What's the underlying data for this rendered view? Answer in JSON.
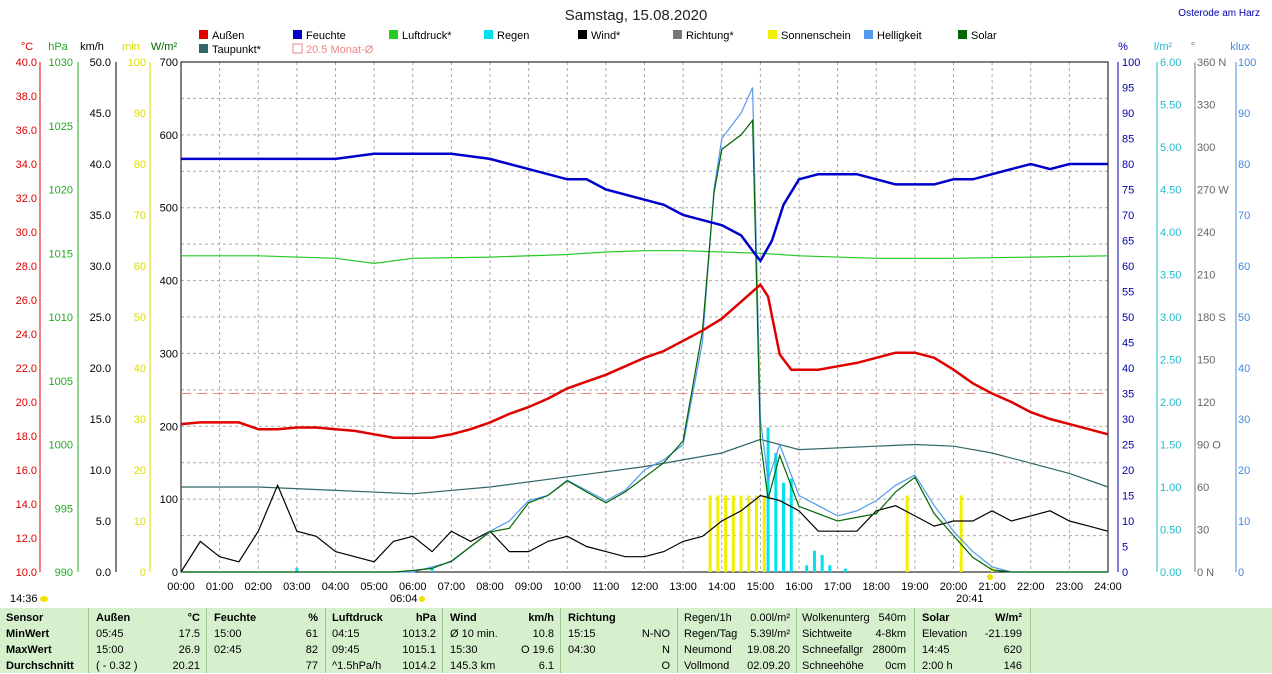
{
  "title": "Samstag, 15.08.2020",
  "location": "Osterode am Harz",
  "legend": [
    {
      "label": "Außen",
      "color": "#e00000"
    },
    {
      "label": "Feuchte",
      "color": "#0000cc"
    },
    {
      "label": "Luftdruck*",
      "color": "#22cc22"
    },
    {
      "label": "Regen",
      "color": "#00e0ee"
    },
    {
      "label": "Wind*",
      "color": "#000000"
    },
    {
      "label": "Richtung*",
      "color": "#777777"
    },
    {
      "label": "Sonnenschein",
      "color": "#f0f000"
    },
    {
      "label": "Helligkeit",
      "color": "#5599ee"
    },
    {
      "label": "Solar",
      "color": "#006600"
    },
    {
      "label": "Taupunkt*",
      "color": "#336666"
    },
    {
      "label": "20.5 Monat-Ø",
      "color": "#e88888"
    }
  ],
  "axis_units": {
    "temp": "°C",
    "pressure": "hPa",
    "wind": "km/h",
    "sun": "min",
    "solar": "W/m²",
    "humidity": "%",
    "rain": "l/m²",
    "direction": "°",
    "lux": "klux"
  },
  "axes": {
    "temp": [
      "40.0",
      "38.0",
      "36.0",
      "34.0",
      "32.0",
      "30.0",
      "28.0",
      "26.0",
      "24.0",
      "22.0",
      "20.0",
      "18.0",
      "16.0",
      "14.0",
      "12.0",
      "10.0"
    ],
    "pressure": [
      "1030",
      "1025",
      "1020",
      "1015",
      "1010",
      "1005",
      "1000",
      "995",
      "990"
    ],
    "wind": [
      "50.0",
      "45.0",
      "40.0",
      "35.0",
      "30.0",
      "25.0",
      "20.0",
      "15.0",
      "10.0",
      "5.0",
      "0.0"
    ],
    "sun": [
      "100",
      "90",
      "80",
      "70",
      "60",
      "50",
      "40",
      "30",
      "20",
      "10",
      "0"
    ],
    "solar": [
      "700",
      "600",
      "500",
      "400",
      "300",
      "200",
      "100",
      "0"
    ],
    "humidity": [
      "100",
      "95",
      "90",
      "85",
      "80",
      "75",
      "70",
      "65",
      "60",
      "55",
      "50",
      "45",
      "40",
      "35",
      "30",
      "25",
      "20",
      "15",
      "10",
      "5",
      "0"
    ],
    "rain": [
      "6.00",
      "5.50",
      "5.00",
      "4.50",
      "4.00",
      "3.50",
      "3.00",
      "2.50",
      "2.00",
      "1.50",
      "1.00",
      "0.50",
      "0.00"
    ],
    "direction": [
      "360 N",
      "330",
      "300",
      "270 W",
      "240",
      "210",
      "180 S",
      "150",
      "120",
      "90 O",
      "60",
      "30",
      "0 N"
    ],
    "lux": [
      "100",
      "90",
      "80",
      "70",
      "60",
      "50",
      "40",
      "30",
      "20",
      "10",
      "0"
    ],
    "time": [
      "00:00",
      "01:00",
      "02:00",
      "03:00",
      "04:00",
      "05:00",
      "06:00",
      "07:00",
      "08:00",
      "09:00",
      "10:00",
      "11:00",
      "12:00",
      "13:00",
      "14:00",
      "15:00",
      "16:00",
      "17:00",
      "18:00",
      "19:00",
      "20:00",
      "21:00",
      "22:00",
      "23:00",
      "24:00"
    ]
  },
  "markers": {
    "current_time": "14:36",
    "sunrise": "06:04",
    "sunset": "20:41"
  },
  "chart_data": {
    "type": "line",
    "title": "Samstag, 15.08.2020",
    "x_unit": "hour",
    "monthly_avg_temp": 20.5,
    "series": [
      {
        "name": "Außen",
        "axis": "temp",
        "x": [
          0,
          0.5,
          1,
          1.5,
          2,
          2.5,
          3,
          3.5,
          4,
          4.5,
          5,
          5.5,
          6,
          6.5,
          7,
          7.5,
          8,
          8.5,
          9,
          9.5,
          10,
          10.5,
          11,
          11.5,
          12,
          12.5,
          13,
          13.5,
          14,
          14.5,
          15,
          15.2,
          15.5,
          15.8,
          16,
          16.5,
          17,
          17.5,
          18,
          18.5,
          19,
          19.5,
          20,
          20.5,
          21,
          21.5,
          22,
          22.5,
          23,
          23.5,
          24
        ],
        "y": [
          18.7,
          18.8,
          18.8,
          18.8,
          18.4,
          18.4,
          18.5,
          18.5,
          18.4,
          18.3,
          18.1,
          17.9,
          17.9,
          17.9,
          18.1,
          18.4,
          18.8,
          19.3,
          19.7,
          20.2,
          20.8,
          21.2,
          21.6,
          22.1,
          22.6,
          23.0,
          23.6,
          24.2,
          24.9,
          25.9,
          26.9,
          26.2,
          22.8,
          21.9,
          21.9,
          21.9,
          22.1,
          22.3,
          22.6,
          22.9,
          22.9,
          22.6,
          21.9,
          21.1,
          20.5,
          20.0,
          19.4,
          19.0,
          18.7,
          18.4,
          18.1
        ]
      },
      {
        "name": "Feuchte",
        "axis": "humidity",
        "x": [
          0,
          1,
          2,
          2.5,
          3,
          4,
          5,
          6,
          7,
          8,
          8.5,
          9,
          10,
          10.5,
          11,
          12,
          12.5,
          13,
          13.5,
          14,
          14.5,
          14.8,
          15,
          15.3,
          15.6,
          16,
          16.5,
          17,
          17.5,
          18,
          18.5,
          19,
          19.5,
          20,
          20.5,
          21,
          21.5,
          22,
          22.5,
          23,
          23.5,
          24
        ],
        "y": [
          81,
          81,
          81,
          81,
          81,
          81,
          82,
          82,
          82,
          81,
          80,
          79,
          77,
          77,
          75,
          73,
          72,
          70,
          69,
          68,
          66,
          63,
          61,
          65,
          72,
          77,
          78,
          78,
          78,
          77,
          76,
          76,
          76,
          77,
          77,
          78,
          79,
          80,
          79,
          80,
          80,
          80
        ]
      },
      {
        "name": "Luftdruck*",
        "axis": "pressure",
        "x": [
          0,
          2,
          4,
          5,
          6,
          8,
          10,
          11,
          12,
          13,
          14,
          15,
          16,
          18,
          20,
          22,
          24
        ],
        "y": [
          1014.8,
          1014.8,
          1014.6,
          1014.2,
          1014.6,
          1014.7,
          1014.9,
          1015.1,
          1015.2,
          1015.2,
          1015.1,
          1015.0,
          1014.8,
          1014.6,
          1014.6,
          1014.7,
          1014.8
        ]
      },
      {
        "name": "Solar",
        "axis": "solar",
        "x": [
          0,
          0.5,
          1,
          1.5,
          2,
          2.5,
          3,
          3.5,
          4,
          4.5,
          5,
          5.5,
          6,
          6.5,
          7,
          7.5,
          8,
          8.5,
          9,
          9.5,
          10,
          10.5,
          11,
          11.5,
          12,
          12.5,
          13,
          13.5,
          13.8,
          14,
          14.5,
          14.8,
          15,
          15.2,
          15.5,
          16,
          16.5,
          17,
          17.5,
          18,
          18.5,
          19,
          19.5,
          20,
          20.5,
          21,
          21.5,
          22,
          22.5,
          23,
          23.5,
          24
        ],
        "y": [
          0,
          0,
          0,
          0,
          0,
          0,
          0,
          0,
          0,
          0,
          0,
          0,
          2,
          5,
          15,
          35,
          55,
          60,
          95,
          105,
          125,
          110,
          95,
          110,
          130,
          150,
          180,
          330,
          520,
          580,
          600,
          620,
          180,
          100,
          160,
          90,
          80,
          70,
          75,
          80,
          110,
          130,
          80,
          50,
          20,
          3,
          0,
          0,
          0,
          0,
          0,
          0
        ]
      },
      {
        "name": "Helligkeit",
        "axis": "lux",
        "x": [
          0,
          6,
          6.5,
          7,
          7.5,
          8,
          8.5,
          9,
          9.5,
          10,
          10.5,
          11,
          11.5,
          12,
          12.5,
          13,
          13.5,
          13.8,
          14,
          14.5,
          14.8,
          15,
          15.2,
          15.5,
          16,
          16.5,
          17,
          17.5,
          18,
          18.5,
          19,
          19.5,
          20,
          20.5,
          21,
          21.5,
          24
        ],
        "y": [
          0,
          0,
          1,
          2,
          5,
          8,
          10,
          14,
          15,
          18,
          16,
          14,
          16,
          20,
          22,
          25,
          45,
          75,
          85,
          90,
          95,
          30,
          18,
          25,
          15,
          13,
          11,
          12,
          14,
          17,
          19,
          13,
          8,
          4,
          1,
          0,
          0
        ]
      },
      {
        "name": "Taupunkt*",
        "axis": "temp",
        "x": [
          0,
          2,
          4,
          6,
          8,
          10,
          12,
          14,
          15,
          16,
          18,
          19,
          20,
          21,
          22,
          23,
          24
        ],
        "y": [
          15.0,
          15.0,
          14.8,
          14.6,
          15.0,
          15.6,
          16.2,
          17.0,
          17.8,
          17.2,
          17.4,
          17.5,
          17.4,
          17.0,
          16.4,
          15.8,
          15.0
        ]
      },
      {
        "name": "Wind*",
        "axis": "wind",
        "x": [
          0,
          0.5,
          1,
          1.5,
          2,
          2.5,
          3,
          3.5,
          4,
          4.5,
          5,
          5.5,
          6,
          6.5,
          7,
          7.5,
          8,
          8.5,
          9,
          9.5,
          10,
          10.5,
          11,
          11.5,
          12,
          12.5,
          13,
          13.5,
          14,
          14.5,
          15,
          15.5,
          16,
          16.5,
          17,
          17.5,
          18,
          18.5,
          19,
          19.5,
          20,
          20.5,
          21,
          21.5,
          22,
          22.5,
          23,
          23.5,
          24
        ],
        "y": [
          0,
          3,
          1.5,
          1,
          4,
          8.5,
          4,
          3.5,
          2,
          1.5,
          1,
          3,
          3.5,
          2,
          4,
          3,
          4,
          2,
          2,
          3,
          3.5,
          2.5,
          2,
          1.5,
          1.5,
          2,
          3,
          3.5,
          5,
          6,
          7.5,
          7,
          6,
          4,
          4,
          4,
          6,
          6.5,
          5.5,
          4.5,
          5,
          5,
          6,
          5,
          5.5,
          6,
          5,
          4.5,
          4
        ]
      },
      {
        "name": "Regen",
        "axis": "rain",
        "x": [
          3,
          6.5,
          15.2,
          15.4,
          15.6,
          15.8,
          16.2,
          16.4,
          16.6,
          16.8,
          17.2
        ],
        "y": [
          0.05,
          0.05,
          1.7,
          1.4,
          1.05,
          1.1,
          0.08,
          0.25,
          0.2,
          0.08,
          0.04
        ]
      },
      {
        "name": "Sonnenschein",
        "axis": "sun",
        "x": [
          13.7,
          13.9,
          14.1,
          14.3,
          14.5,
          14.7,
          14.9,
          15.1,
          18.8,
          20.2,
          21.0
        ],
        "y": [
          15,
          15,
          15,
          15,
          15,
          15,
          15,
          15,
          15,
          15,
          1
        ]
      }
    ]
  },
  "footer": {
    "sensor": {
      "header": "Sensor",
      "rows": [
        "MinWert",
        "MaxWert",
        "Durchschnitt"
      ]
    },
    "aussen": {
      "header": "Außen",
      "unit": "°C",
      "rows": [
        [
          "05:45",
          "17.5"
        ],
        [
          "15:00",
          "26.9"
        ],
        [
          "( - 0.32 )",
          "20.21"
        ]
      ]
    },
    "feuchte": {
      "header": "Feuchte",
      "unit": "%",
      "rows": [
        [
          "15:00",
          "61"
        ],
        [
          "02:45",
          "82"
        ],
        [
          "",
          "77"
        ]
      ]
    },
    "luftdruck": {
      "header": "Luftdruck",
      "unit": "hPa",
      "rows": [
        [
          "04:15",
          "1013.2"
        ],
        [
          "09:45",
          "1015.1"
        ],
        [
          "^1.5hPa/h",
          "1014.2"
        ]
      ]
    },
    "wind": {
      "header": "Wind",
      "unit": "km/h",
      "rows": [
        [
          "Ø 10 min.",
          "10.8"
        ],
        [
          "15:30",
          "O 19.6"
        ],
        [
          "145.3 km",
          "6.1"
        ]
      ]
    },
    "richtung": {
      "header": "Richtung",
      "rows": [
        [
          "15:15",
          "N-NO"
        ],
        [
          "04:30",
          "N"
        ],
        [
          "",
          "O"
        ]
      ]
    },
    "regen": {
      "rows": [
        [
          "Regen/1h",
          "0.00l/m²"
        ],
        [
          "Regen/Tag",
          "5.39l/m²"
        ],
        [
          "Neumond",
          "19.08.20"
        ],
        [
          "Vollmond",
          "02.09.20"
        ]
      ]
    },
    "wolken": {
      "rows": [
        [
          "Wolkenunterg",
          "540m"
        ],
        [
          "Sichtweite",
          "4-8km"
        ],
        [
          "Schneefallgr",
          "2800m"
        ],
        [
          "Schneehöhe",
          "0cm"
        ]
      ]
    },
    "solar": {
      "header": "Solar",
      "unit": "W/m²",
      "rows": [
        [
          "Elevation",
          "-21.199"
        ],
        [
          "14:45",
          "620"
        ],
        [
          "2:00 h",
          "146"
        ]
      ]
    }
  }
}
